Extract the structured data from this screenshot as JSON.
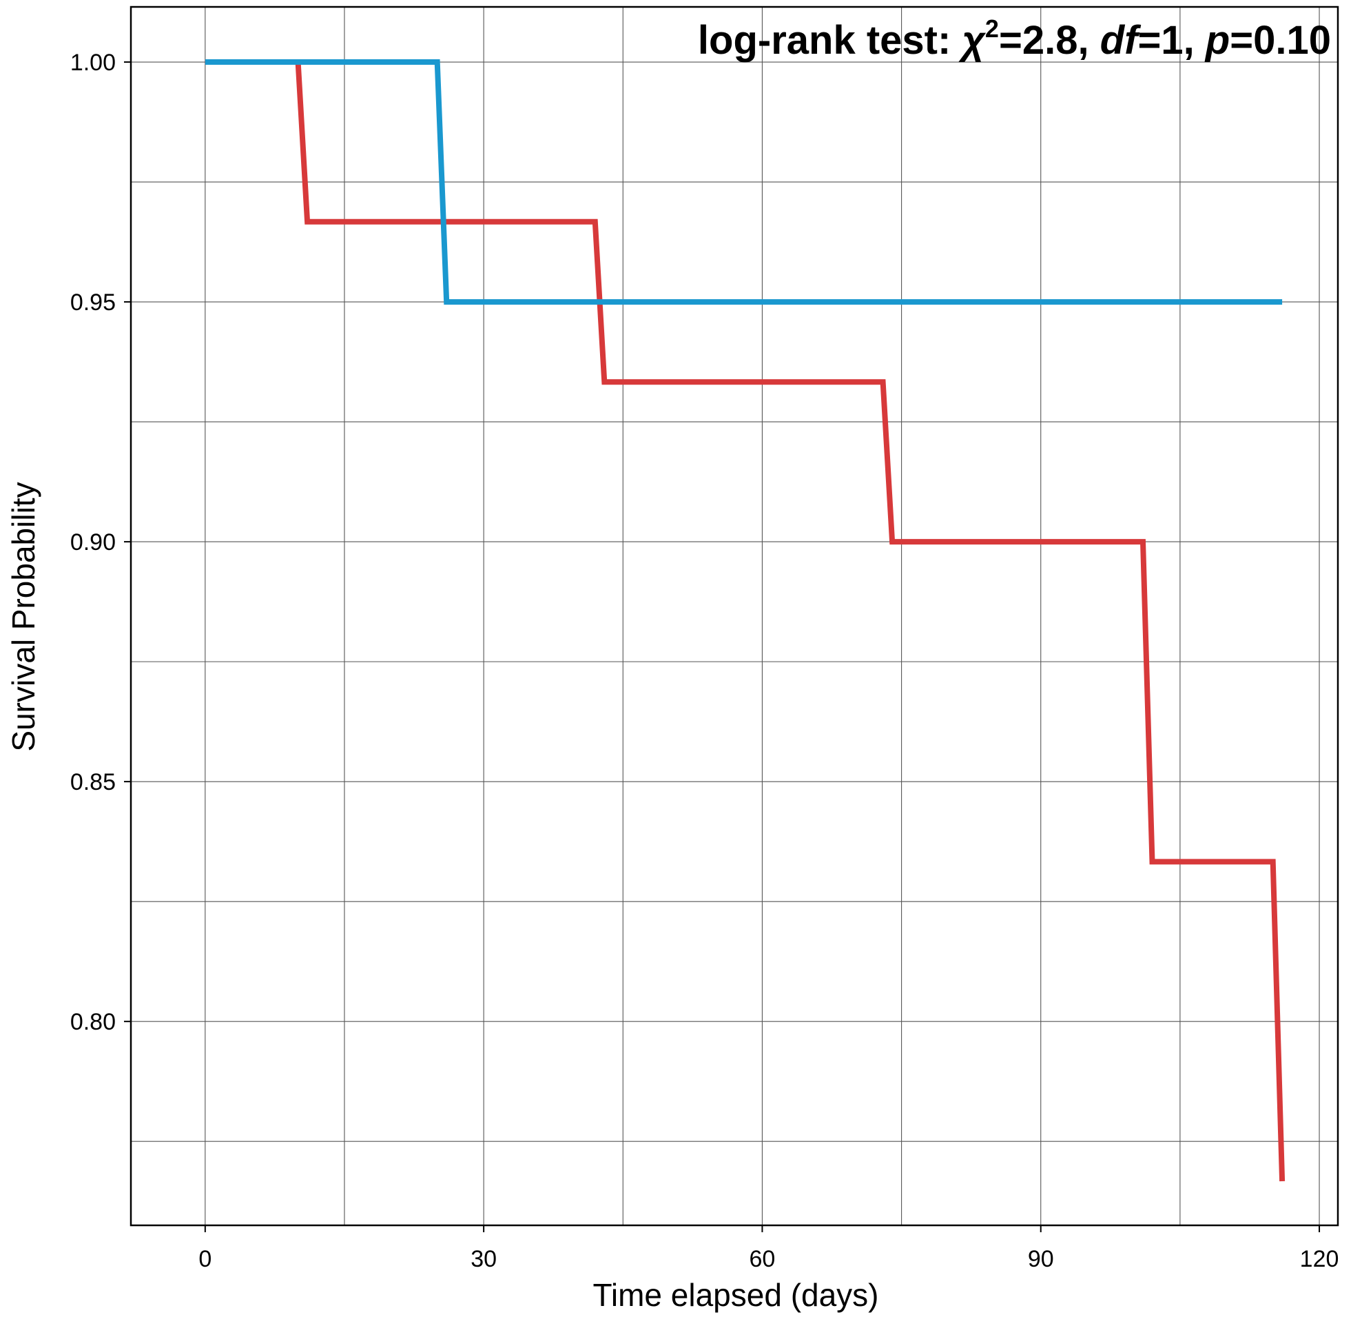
{
  "chart_data": {
    "type": "line",
    "step": true,
    "xlabel": "Time elapsed (days)",
    "ylabel": "Survival Probability",
    "xlim": [
      -8,
      122
    ],
    "ylim": [
      0.7575,
      1.0115
    ],
    "x_ticks": [
      0,
      30,
      60,
      90,
      120
    ],
    "x_tick_labels": [
      "0",
      "30",
      "60",
      "90",
      "120"
    ],
    "x_minor_grid": [
      15,
      45,
      75,
      105
    ],
    "y_ticks": [
      0.8,
      0.85,
      0.9,
      0.95,
      1.0
    ],
    "y_tick_labels": [
      "0.80",
      "0.85",
      "0.90",
      "0.95",
      "1.00"
    ],
    "y_minor_grid": [
      0.775,
      0.825,
      0.875,
      0.925,
      0.975
    ],
    "grid": true,
    "annotation": {
      "prefix": "log-rank test: ",
      "chi": "χ",
      "chi_sup": "2",
      "chi_value": "=2.8, ",
      "df_label": "df",
      "df_value": "=1, ",
      "p_label": "p",
      "p_value": "=0.10"
    },
    "series": [
      {
        "color": "#d7393a",
        "x": [
          0,
          10,
          11,
          42,
          43,
          73,
          74,
          101,
          102,
          115,
          116
        ],
        "y": [
          1.0,
          1.0,
          0.9667,
          0.9667,
          0.9333,
          0.9333,
          0.9,
          0.9,
          0.8333,
          0.8333,
          0.7667
        ]
      },
      {
        "color": "#1a98cf",
        "x": [
          0,
          25,
          26,
          116
        ],
        "y": [
          1.0,
          1.0,
          0.95,
          0.95
        ]
      }
    ]
  }
}
